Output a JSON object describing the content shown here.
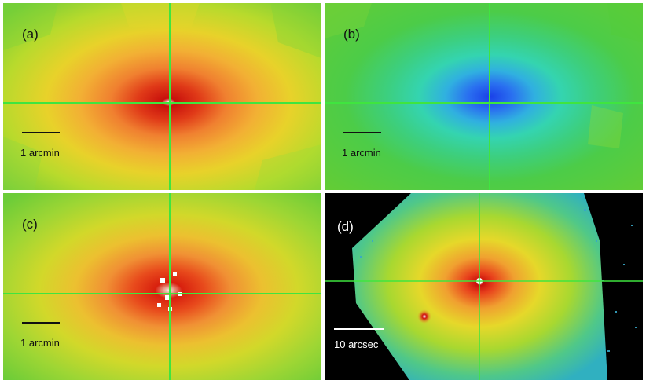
{
  "panels": [
    {
      "id": "a",
      "label": "(a)",
      "scale_label": "1 arcmin",
      "palette": "warm"
    },
    {
      "id": "b",
      "label": "(b)",
      "scale_label": "1 arcmin",
      "palette": "cool"
    },
    {
      "id": "c",
      "label": "(c)",
      "scale_label": "1 arcmin",
      "palette": "warm-noisy"
    },
    {
      "id": "d",
      "label": "(d)",
      "scale_label": "10 arcsec",
      "palette": "image"
    }
  ],
  "colors": {
    "crosshair": "#3fe53f",
    "background_green": "#5ccf3a",
    "yellow": "#e8e020",
    "orange": "#f0a030",
    "red": "#d81a10",
    "blue": "#2060f0",
    "cyan": "#30d8b0"
  }
}
